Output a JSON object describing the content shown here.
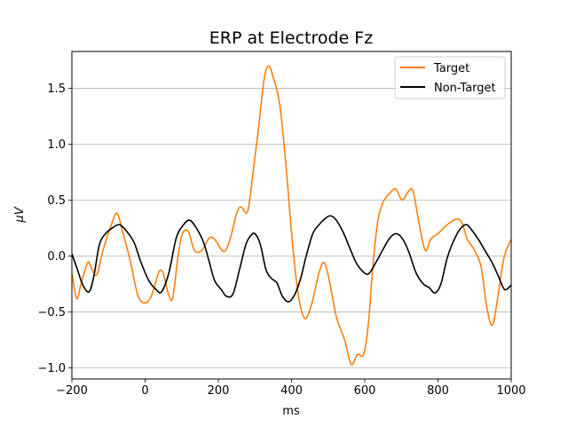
{
  "chart_data": {
    "type": "line",
    "title": "ERP at Electrode Fz",
    "xlabel": "ms",
    "ylabel": "μV",
    "xlim": [
      -200,
      1000
    ],
    "ylim": [
      -1.1,
      1.83
    ],
    "xticks": [
      -200,
      0,
      200,
      400,
      600,
      800,
      1000
    ],
    "yticks": [
      -1.0,
      -0.5,
      0.0,
      0.5,
      1.0,
      1.5
    ],
    "xtick_labels": [
      "−200",
      "0",
      "200",
      "400",
      "600",
      "800",
      "1000"
    ],
    "ytick_labels": [
      "−1.0",
      "−0.5",
      "0.0",
      "0.5",
      "1.0",
      "1.5"
    ],
    "grid": "horizontal",
    "legend_position": "top-right",
    "series": [
      {
        "name": "Target",
        "color": "#ff7f0e",
        "points": [
          [
            -200,
            -0.15
          ],
          [
            -187,
            -0.38
          ],
          [
            -175,
            -0.25
          ],
          [
            -157,
            -0.06
          ],
          [
            -148,
            -0.1
          ],
          [
            -132,
            -0.17
          ],
          [
            -115,
            0.05
          ],
          [
            -90,
            0.3
          ],
          [
            -76,
            0.38
          ],
          [
            -60,
            0.2
          ],
          [
            -40,
            -0.05
          ],
          [
            -20,
            -0.35
          ],
          [
            0,
            -0.42
          ],
          [
            18,
            -0.35
          ],
          [
            38,
            -0.14
          ],
          [
            50,
            -0.16
          ],
          [
            62,
            -0.32
          ],
          [
            75,
            -0.38
          ],
          [
            90,
            0.0
          ],
          [
            102,
            0.2
          ],
          [
            118,
            0.22
          ],
          [
            135,
            0.05
          ],
          [
            155,
            0.05
          ],
          [
            175,
            0.16
          ],
          [
            190,
            0.15
          ],
          [
            215,
            0.04
          ],
          [
            232,
            0.15
          ],
          [
            250,
            0.38
          ],
          [
            262,
            0.44
          ],
          [
            280,
            0.4
          ],
          [
            295,
            0.75
          ],
          [
            310,
            1.15
          ],
          [
            325,
            1.58
          ],
          [
            337,
            1.7
          ],
          [
            350,
            1.6
          ],
          [
            368,
            1.35
          ],
          [
            385,
            0.8
          ],
          [
            403,
            0.1
          ],
          [
            420,
            -0.38
          ],
          [
            437,
            -0.56
          ],
          [
            455,
            -0.43
          ],
          [
            475,
            -0.15
          ],
          [
            490,
            -0.06
          ],
          [
            505,
            -0.25
          ],
          [
            523,
            -0.55
          ],
          [
            545,
            -0.75
          ],
          [
            563,
            -0.97
          ],
          [
            580,
            -0.88
          ],
          [
            597,
            -0.88
          ],
          [
            610,
            -0.6
          ],
          [
            622,
            -0.1
          ],
          [
            635,
            0.3
          ],
          [
            650,
            0.48
          ],
          [
            668,
            0.56
          ],
          [
            685,
            0.6
          ],
          [
            702,
            0.5
          ],
          [
            720,
            0.58
          ],
          [
            732,
            0.58
          ],
          [
            748,
            0.3
          ],
          [
            765,
            0.05
          ],
          [
            780,
            0.15
          ],
          [
            800,
            0.2
          ],
          [
            825,
            0.28
          ],
          [
            850,
            0.33
          ],
          [
            865,
            0.3
          ],
          [
            880,
            0.15
          ],
          [
            900,
            0.05
          ],
          [
            918,
            -0.1
          ],
          [
            933,
            -0.45
          ],
          [
            948,
            -0.62
          ],
          [
            962,
            -0.4
          ],
          [
            980,
            -0.02
          ],
          [
            1000,
            0.15
          ]
        ]
      },
      {
        "name": "Non-Target",
        "color": "#000000",
        "points": [
          [
            -200,
            0.02
          ],
          [
            -185,
            -0.12
          ],
          [
            -170,
            -0.26
          ],
          [
            -153,
            -0.32
          ],
          [
            -140,
            -0.18
          ],
          [
            -125,
            0.1
          ],
          [
            -108,
            0.2
          ],
          [
            -90,
            0.25
          ],
          [
            -70,
            0.28
          ],
          [
            -50,
            0.22
          ],
          [
            -30,
            0.12
          ],
          [
            -12,
            -0.05
          ],
          [
            10,
            -0.22
          ],
          [
            30,
            -0.3
          ],
          [
            45,
            -0.32
          ],
          [
            65,
            -0.15
          ],
          [
            85,
            0.16
          ],
          [
            105,
            0.28
          ],
          [
            122,
            0.32
          ],
          [
            140,
            0.25
          ],
          [
            160,
            0.12
          ],
          [
            175,
            -0.05
          ],
          [
            190,
            -0.22
          ],
          [
            208,
            -0.3
          ],
          [
            222,
            -0.36
          ],
          [
            240,
            -0.34
          ],
          [
            258,
            -0.12
          ],
          [
            275,
            0.1
          ],
          [
            288,
            0.18
          ],
          [
            300,
            0.2
          ],
          [
            315,
            0.1
          ],
          [
            330,
            -0.12
          ],
          [
            345,
            -0.2
          ],
          [
            360,
            -0.24
          ],
          [
            375,
            -0.36
          ],
          [
            392,
            -0.41
          ],
          [
            408,
            -0.35
          ],
          [
            425,
            -0.2
          ],
          [
            440,
            0.0
          ],
          [
            458,
            0.2
          ],
          [
            475,
            0.28
          ],
          [
            490,
            0.33
          ],
          [
            505,
            0.36
          ],
          [
            520,
            0.33
          ],
          [
            540,
            0.22
          ],
          [
            558,
            0.08
          ],
          [
            575,
            -0.05
          ],
          [
            592,
            -0.13
          ],
          [
            610,
            -0.16
          ],
          [
            630,
            -0.06
          ],
          [
            650,
            0.06
          ],
          [
            668,
            0.16
          ],
          [
            685,
            0.2
          ],
          [
            702,
            0.16
          ],
          [
            720,
            0.04
          ],
          [
            740,
            -0.15
          ],
          [
            760,
            -0.25
          ],
          [
            775,
            -0.28
          ],
          [
            792,
            -0.33
          ],
          [
            808,
            -0.25
          ],
          [
            825,
            -0.02
          ],
          [
            842,
            0.13
          ],
          [
            860,
            0.24
          ],
          [
            878,
            0.28
          ],
          [
            895,
            0.22
          ],
          [
            912,
            0.14
          ],
          [
            930,
            0.04
          ],
          [
            948,
            -0.06
          ],
          [
            965,
            -0.18
          ],
          [
            982,
            -0.3
          ],
          [
            1000,
            -0.26
          ]
        ]
      }
    ]
  }
}
